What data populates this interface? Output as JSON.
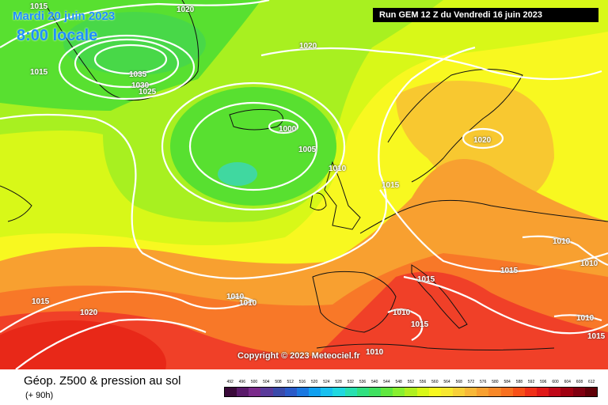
{
  "header": {
    "date": "Mardi 20 juin 2023",
    "time": "8:00 locale",
    "run": "Run GEM 12 Z du Vendredi 16 juin 2023"
  },
  "copyright": "Copyright © 2023 Meteociel.fr",
  "footer": {
    "title": "Géop. Z500 & pression au sol",
    "subtitle": "(+ 90h)"
  },
  "isobar_labels": [
    {
      "text": "1020"
    },
    {
      "text": "1015"
    },
    {
      "text": "1015"
    },
    {
      "text": "1035"
    },
    {
      "text": "1030"
    },
    {
      "text": "1025"
    },
    {
      "text": "1020"
    },
    {
      "text": "1000"
    },
    {
      "text": "1005"
    },
    {
      "text": "1010"
    },
    {
      "text": "1015"
    },
    {
      "text": "1020"
    },
    {
      "text": "1010"
    },
    {
      "text": "1010"
    },
    {
      "text": "1015"
    },
    {
      "text": "1010"
    },
    {
      "text": "1015"
    },
    {
      "text": "1015"
    },
    {
      "text": "1020"
    },
    {
      "text": "1010"
    },
    {
      "text": "1010"
    },
    {
      "text": "1010"
    },
    {
      "text": "1015"
    },
    {
      "text": "1010"
    },
    {
      "text": "1015"
    }
  ],
  "scale": {
    "labels": [
      "492",
      "496",
      "500",
      "504",
      "508",
      "512",
      "516",
      "520",
      "524",
      "528",
      "532",
      "536",
      "540",
      "544",
      "548",
      "552",
      "556",
      "560",
      "564",
      "568",
      "572",
      "576",
      "580",
      "584",
      "588",
      "592",
      "596",
      "600",
      "604",
      "608",
      "612"
    ],
    "colors": [
      "#3a0a3a",
      "#5a1a6a",
      "#7a2a8a",
      "#5a3a9a",
      "#3a4aaa",
      "#2a5ac8",
      "#1a78e0",
      "#10a0f0",
      "#18c0f0",
      "#20d8e0",
      "#28e0b0",
      "#30e080",
      "#40e060",
      "#60e840",
      "#88f030",
      "#b0f020",
      "#d8f818",
      "#f8f820",
      "#f8e830",
      "#f8d038",
      "#f8b838",
      "#f8a030",
      "#f88828",
      "#f87020",
      "#f85018",
      "#f03018",
      "#e01818",
      "#c00818",
      "#a00010",
      "#800010",
      "#600008"
    ]
  },
  "colors": {
    "green": "#58e030",
    "light_green": "#a8f020",
    "yellow_green": "#d8f818",
    "yellow": "#f8f820",
    "orange": "#f8a030",
    "red": "#f04028",
    "title_blue": "#1e90ff"
  }
}
